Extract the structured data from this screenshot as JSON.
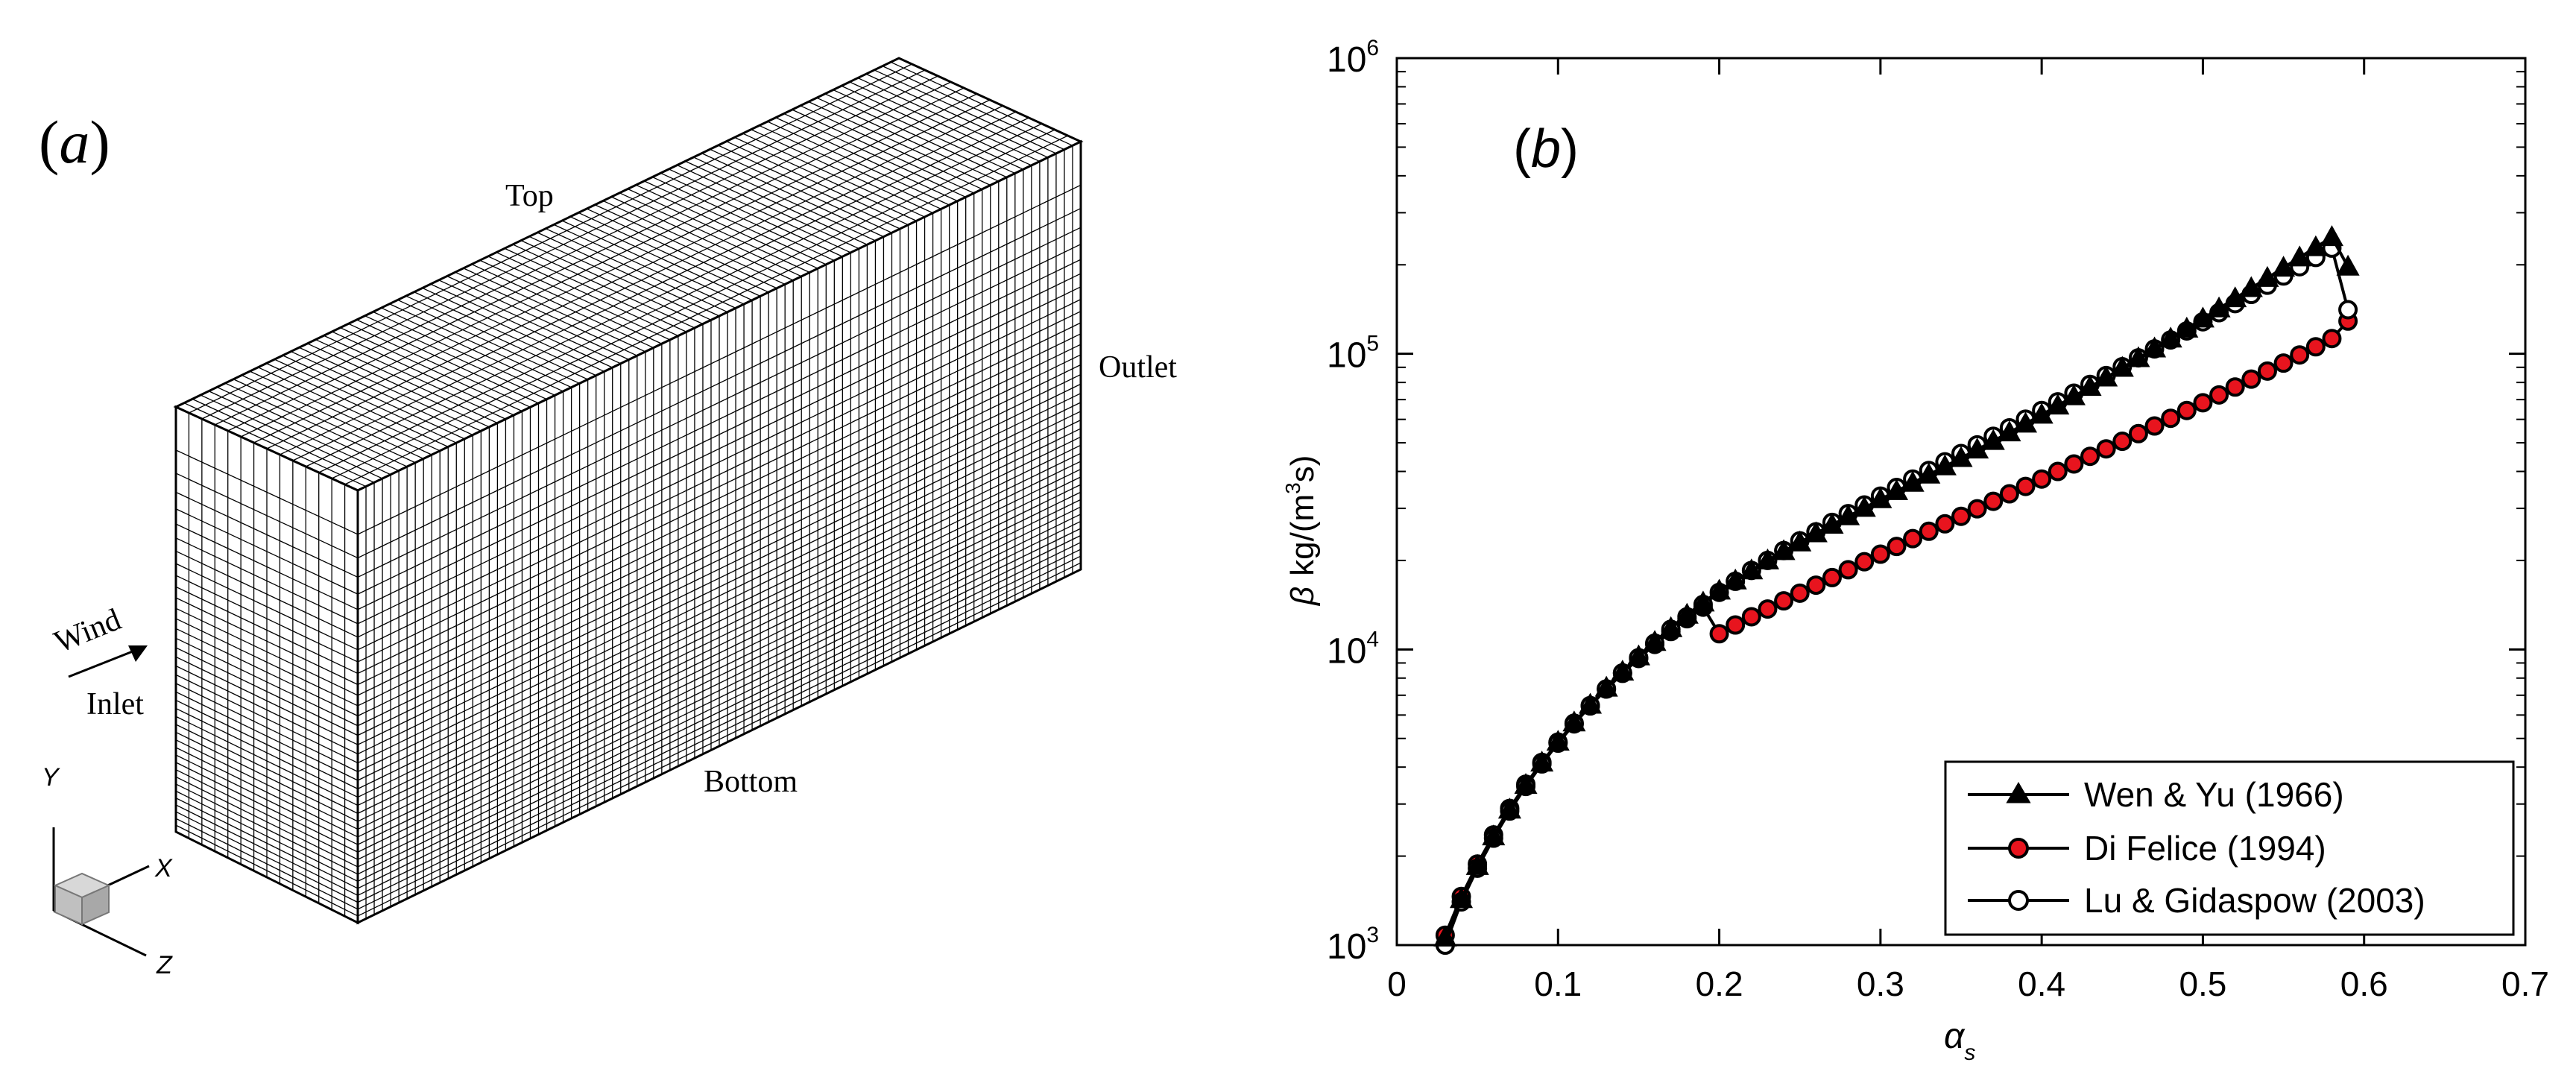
{
  "panel_a": {
    "label_open": "(",
    "label_letter": "a",
    "label_close": ")",
    "faces": {
      "top": "Top",
      "outlet": "Outlet",
      "bottom": "Bottom",
      "inlet": "Inlet",
      "wind": "Wind"
    },
    "axes": {
      "y": "Y",
      "x": "X",
      "z": "Z"
    },
    "icons": [
      "wind-arrow-icon",
      "orientation-cube-icon"
    ],
    "colors": {
      "mesh": "#000000",
      "cube": "#c8c8c8"
    }
  },
  "panel_b": {
    "label_open": "(",
    "label_letter": "b",
    "label_close": ")"
  },
  "chart_data": {
    "type": "scatter",
    "title": "",
    "xlabel": "α_s",
    "ylabel": "β  kg/(m^3s)",
    "ylabel_parts": {
      "sym": "β",
      "unit": "kg/(m",
      "exp": "3",
      "tail": "s)"
    },
    "xlabel_parts": {
      "sym": "α",
      "sub": "s"
    },
    "xlim": [
      0,
      0.7
    ],
    "ylim": [
      1000,
      1000000
    ],
    "yscale": "log",
    "x_ticks": [
      "0",
      "0.1",
      "0.2",
      "0.3",
      "0.4",
      "0.5",
      "0.6",
      "0.7"
    ],
    "y_ticks": [
      {
        "base": "10",
        "exp": "3"
      },
      {
        "base": "10",
        "exp": "4"
      },
      {
        "base": "10",
        "exp": "5"
      },
      {
        "base": "10",
        "exp": "6"
      }
    ],
    "legend_position": "bottom-right",
    "x": [
      0.03,
      0.04,
      0.05,
      0.06,
      0.07,
      0.08,
      0.09,
      0.1,
      0.11,
      0.12,
      0.13,
      0.14,
      0.15,
      0.16,
      0.17,
      0.18,
      0.19,
      0.2,
      0.21,
      0.22,
      0.23,
      0.24,
      0.25,
      0.26,
      0.27,
      0.28,
      0.29,
      0.3,
      0.31,
      0.32,
      0.33,
      0.34,
      0.35,
      0.36,
      0.37,
      0.38,
      0.39,
      0.4,
      0.41,
      0.42,
      0.43,
      0.44,
      0.45,
      0.46,
      0.47,
      0.48,
      0.49,
      0.5,
      0.51,
      0.52,
      0.53,
      0.54,
      0.55,
      0.56,
      0.57,
      0.58,
      0.59
    ],
    "series": [
      {
        "name": "Wen & Yu (1966)",
        "marker": "triangle",
        "color": "#000000",
        "fill": "#000000",
        "values": [
          1060,
          1430,
          1850,
          2330,
          2870,
          3480,
          4140,
          4870,
          5660,
          6500,
          7420,
          8410,
          9470,
          10600,
          11800,
          13100,
          14400,
          15800,
          17100,
          18500,
          20000,
          21500,
          23000,
          24700,
          26400,
          28200,
          30100,
          32200,
          34300,
          36600,
          39000,
          41600,
          44400,
          47400,
          50700,
          54200,
          58000,
          62200,
          66800,
          71800,
          77200,
          83100,
          89600,
          96600,
          104200,
          112500,
          121600,
          131500,
          142300,
          154000,
          166700,
          180500,
          195500,
          211700,
          229200,
          247900,
          197000
        ]
      },
      {
        "name": "Di Felice (1994)",
        "marker": "circle",
        "color": "#000000",
        "fill": "#e8141e",
        "values": [
          1080,
          1460,
          1880,
          2360,
          2900,
          3500,
          4150,
          4860,
          5630,
          6460,
          7350,
          8300,
          9320,
          10400,
          11500,
          12700,
          13900,
          11300,
          12100,
          12900,
          13700,
          14600,
          15500,
          16500,
          17500,
          18600,
          19800,
          21000,
          22300,
          23700,
          25100,
          26600,
          28200,
          29900,
          31700,
          33600,
          35600,
          37700,
          40000,
          42400,
          45000,
          47700,
          50600,
          53700,
          57000,
          60500,
          64300,
          68300,
          72600,
          77200,
          82100,
          87400,
          93000,
          99100,
          105600,
          112600,
          129000
        ]
      },
      {
        "name": "Lu & Gidaspow (2003)",
        "marker": "circle",
        "color": "#000000",
        "fill": "#ffffff",
        "values": [
          1000,
          1400,
          1820,
          2300,
          2840,
          3440,
          4100,
          4820,
          5600,
          6440,
          7350,
          8330,
          9380,
          10500,
          11700,
          12900,
          14200,
          15600,
          17000,
          18500,
          20000,
          21600,
          23300,
          25000,
          26900,
          28800,
          30800,
          33000,
          35300,
          37700,
          40300,
          43100,
          46000,
          49200,
          52600,
          56200,
          60100,
          64300,
          68800,
          73600,
          78800,
          84400,
          90400,
          96900,
          103900,
          111400,
          119500,
          128300,
          137700,
          147800,
          158800,
          170600,
          183300,
          197000,
          211800,
          227700,
          141000
        ]
      }
    ]
  }
}
